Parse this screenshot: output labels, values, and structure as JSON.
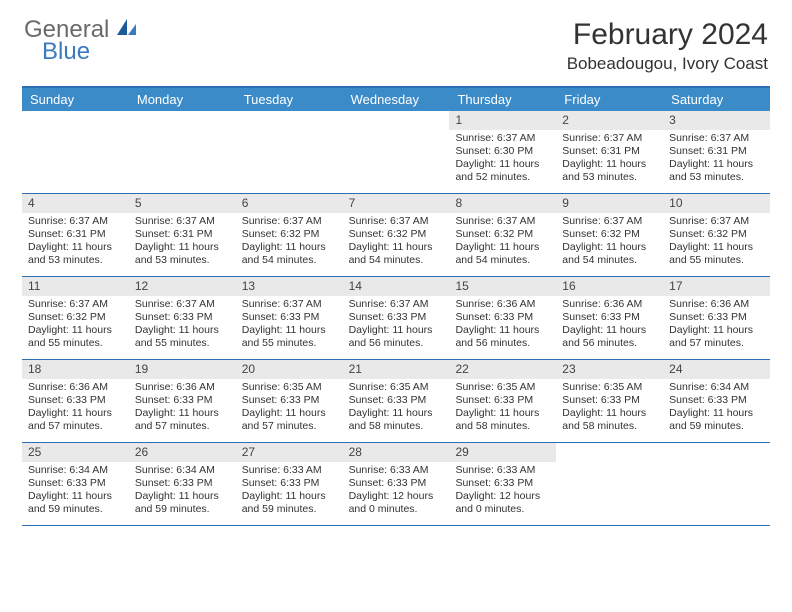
{
  "logo": {
    "general": "General",
    "blue": "Blue"
  },
  "title": "February 2024",
  "location": "Bobeadougou, Ivory Coast",
  "colors": {
    "header_bar": "#3b8bc9",
    "header_text": "#ffffff",
    "border": "#2d6fb3",
    "daynum_bg": "#e9e9e9",
    "logo_gray": "#6a6a6a",
    "logo_blue": "#3a7bbf"
  },
  "day_headers": [
    "Sunday",
    "Monday",
    "Tuesday",
    "Wednesday",
    "Thursday",
    "Friday",
    "Saturday"
  ],
  "weeks": [
    [
      {
        "day": "",
        "sunrise": "",
        "sunset": "",
        "daylight": ""
      },
      {
        "day": "",
        "sunrise": "",
        "sunset": "",
        "daylight": ""
      },
      {
        "day": "",
        "sunrise": "",
        "sunset": "",
        "daylight": ""
      },
      {
        "day": "",
        "sunrise": "",
        "sunset": "",
        "daylight": ""
      },
      {
        "day": "1",
        "sunrise": "Sunrise: 6:37 AM",
        "sunset": "Sunset: 6:30 PM",
        "daylight": "Daylight: 11 hours and 52 minutes."
      },
      {
        "day": "2",
        "sunrise": "Sunrise: 6:37 AM",
        "sunset": "Sunset: 6:31 PM",
        "daylight": "Daylight: 11 hours and 53 minutes."
      },
      {
        "day": "3",
        "sunrise": "Sunrise: 6:37 AM",
        "sunset": "Sunset: 6:31 PM",
        "daylight": "Daylight: 11 hours and 53 minutes."
      }
    ],
    [
      {
        "day": "4",
        "sunrise": "Sunrise: 6:37 AM",
        "sunset": "Sunset: 6:31 PM",
        "daylight": "Daylight: 11 hours and 53 minutes."
      },
      {
        "day": "5",
        "sunrise": "Sunrise: 6:37 AM",
        "sunset": "Sunset: 6:31 PM",
        "daylight": "Daylight: 11 hours and 53 minutes."
      },
      {
        "day": "6",
        "sunrise": "Sunrise: 6:37 AM",
        "sunset": "Sunset: 6:32 PM",
        "daylight": "Daylight: 11 hours and 54 minutes."
      },
      {
        "day": "7",
        "sunrise": "Sunrise: 6:37 AM",
        "sunset": "Sunset: 6:32 PM",
        "daylight": "Daylight: 11 hours and 54 minutes."
      },
      {
        "day": "8",
        "sunrise": "Sunrise: 6:37 AM",
        "sunset": "Sunset: 6:32 PM",
        "daylight": "Daylight: 11 hours and 54 minutes."
      },
      {
        "day": "9",
        "sunrise": "Sunrise: 6:37 AM",
        "sunset": "Sunset: 6:32 PM",
        "daylight": "Daylight: 11 hours and 54 minutes."
      },
      {
        "day": "10",
        "sunrise": "Sunrise: 6:37 AM",
        "sunset": "Sunset: 6:32 PM",
        "daylight": "Daylight: 11 hours and 55 minutes."
      }
    ],
    [
      {
        "day": "11",
        "sunrise": "Sunrise: 6:37 AM",
        "sunset": "Sunset: 6:32 PM",
        "daylight": "Daylight: 11 hours and 55 minutes."
      },
      {
        "day": "12",
        "sunrise": "Sunrise: 6:37 AM",
        "sunset": "Sunset: 6:33 PM",
        "daylight": "Daylight: 11 hours and 55 minutes."
      },
      {
        "day": "13",
        "sunrise": "Sunrise: 6:37 AM",
        "sunset": "Sunset: 6:33 PM",
        "daylight": "Daylight: 11 hours and 55 minutes."
      },
      {
        "day": "14",
        "sunrise": "Sunrise: 6:37 AM",
        "sunset": "Sunset: 6:33 PM",
        "daylight": "Daylight: 11 hours and 56 minutes."
      },
      {
        "day": "15",
        "sunrise": "Sunrise: 6:36 AM",
        "sunset": "Sunset: 6:33 PM",
        "daylight": "Daylight: 11 hours and 56 minutes."
      },
      {
        "day": "16",
        "sunrise": "Sunrise: 6:36 AM",
        "sunset": "Sunset: 6:33 PM",
        "daylight": "Daylight: 11 hours and 56 minutes."
      },
      {
        "day": "17",
        "sunrise": "Sunrise: 6:36 AM",
        "sunset": "Sunset: 6:33 PM",
        "daylight": "Daylight: 11 hours and 57 minutes."
      }
    ],
    [
      {
        "day": "18",
        "sunrise": "Sunrise: 6:36 AM",
        "sunset": "Sunset: 6:33 PM",
        "daylight": "Daylight: 11 hours and 57 minutes."
      },
      {
        "day": "19",
        "sunrise": "Sunrise: 6:36 AM",
        "sunset": "Sunset: 6:33 PM",
        "daylight": "Daylight: 11 hours and 57 minutes."
      },
      {
        "day": "20",
        "sunrise": "Sunrise: 6:35 AM",
        "sunset": "Sunset: 6:33 PM",
        "daylight": "Daylight: 11 hours and 57 minutes."
      },
      {
        "day": "21",
        "sunrise": "Sunrise: 6:35 AM",
        "sunset": "Sunset: 6:33 PM",
        "daylight": "Daylight: 11 hours and 58 minutes."
      },
      {
        "day": "22",
        "sunrise": "Sunrise: 6:35 AM",
        "sunset": "Sunset: 6:33 PM",
        "daylight": "Daylight: 11 hours and 58 minutes."
      },
      {
        "day": "23",
        "sunrise": "Sunrise: 6:35 AM",
        "sunset": "Sunset: 6:33 PM",
        "daylight": "Daylight: 11 hours and 58 minutes."
      },
      {
        "day": "24",
        "sunrise": "Sunrise: 6:34 AM",
        "sunset": "Sunset: 6:33 PM",
        "daylight": "Daylight: 11 hours and 59 minutes."
      }
    ],
    [
      {
        "day": "25",
        "sunrise": "Sunrise: 6:34 AM",
        "sunset": "Sunset: 6:33 PM",
        "daylight": "Daylight: 11 hours and 59 minutes."
      },
      {
        "day": "26",
        "sunrise": "Sunrise: 6:34 AM",
        "sunset": "Sunset: 6:33 PM",
        "daylight": "Daylight: 11 hours and 59 minutes."
      },
      {
        "day": "27",
        "sunrise": "Sunrise: 6:33 AM",
        "sunset": "Sunset: 6:33 PM",
        "daylight": "Daylight: 11 hours and 59 minutes."
      },
      {
        "day": "28",
        "sunrise": "Sunrise: 6:33 AM",
        "sunset": "Sunset: 6:33 PM",
        "daylight": "Daylight: 12 hours and 0 minutes."
      },
      {
        "day": "29",
        "sunrise": "Sunrise: 6:33 AM",
        "sunset": "Sunset: 6:33 PM",
        "daylight": "Daylight: 12 hours and 0 minutes."
      },
      {
        "day": "",
        "sunrise": "",
        "sunset": "",
        "daylight": ""
      },
      {
        "day": "",
        "sunrise": "",
        "sunset": "",
        "daylight": ""
      }
    ]
  ]
}
